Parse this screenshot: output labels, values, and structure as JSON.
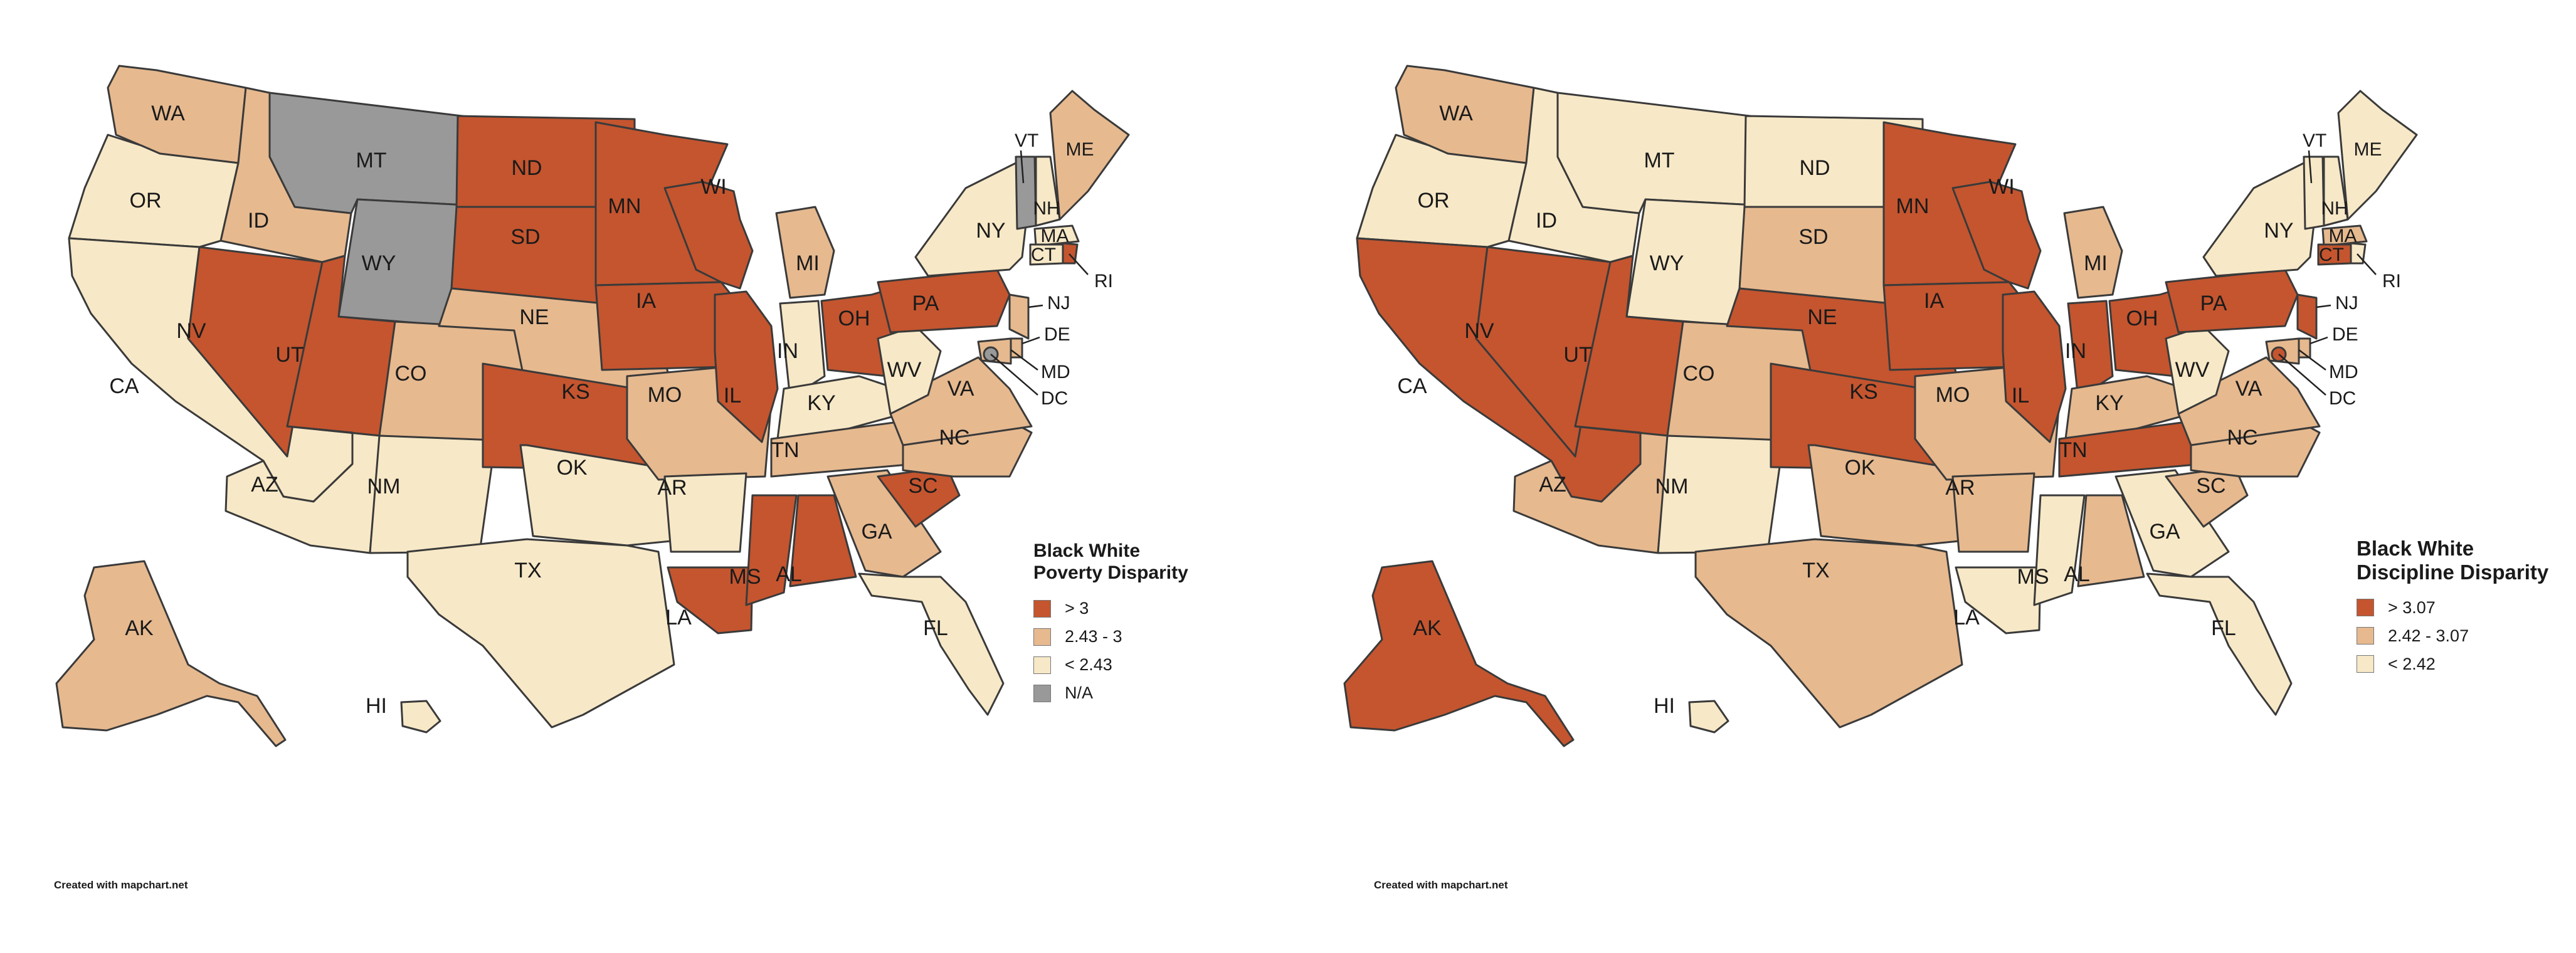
{
  "colors": {
    "high": "#c4552f",
    "mid": "#e6b98f",
    "low": "#f7e8c7",
    "na": "#999999"
  },
  "maps": [
    {
      "legend": {
        "title_line1": "Black White",
        "title_line2": "Poverty Disparity",
        "items": [
          {
            "label": "> 3",
            "class": "high"
          },
          {
            "label": "2.43 - 3",
            "class": "mid"
          },
          {
            "label": "< 2.43",
            "class": "low"
          },
          {
            "label": "N/A",
            "class": "na"
          }
        ]
      },
      "credit": "Created with mapchart.net",
      "states": {
        "WA": "mid",
        "OR": "low",
        "CA": "low",
        "NV": "high",
        "ID": "mid",
        "MT": "na",
        "WY": "na",
        "UT": "high",
        "AZ": "low",
        "CO": "mid",
        "NM": "low",
        "ND": "high",
        "SD": "high",
        "NE": "mid",
        "KS": "high",
        "OK": "low",
        "TX": "low",
        "MN": "high",
        "IA": "high",
        "MO": "mid",
        "AR": "low",
        "LA": "high",
        "WI": "high",
        "IL": "high",
        "MI": "mid",
        "IN": "low",
        "OH": "high",
        "KY": "low",
        "TN": "mid",
        "MS": "high",
        "AL": "high",
        "GA": "mid",
        "FL": "low",
        "SC": "high",
        "NC": "mid",
        "VA": "mid",
        "WV": "low",
        "PA": "high",
        "NY": "low",
        "VT": "na",
        "NH": "low",
        "ME": "mid",
        "MA": "low",
        "CT": "low",
        "RI": "high",
        "NJ": "mid",
        "DE": "mid",
        "MD": "mid",
        "DC": "na",
        "AK": "mid",
        "HI": "low"
      }
    },
    {
      "legend": {
        "title_line1": "Black White",
        "title_line2": "Discipline Disparity",
        "items": [
          {
            "label": "> 3.07",
            "class": "high"
          },
          {
            "label": "2.42 - 3.07",
            "class": "mid"
          },
          {
            "label": "< 2.42",
            "class": "low"
          }
        ]
      },
      "credit": "Created with mapchart.net",
      "states": {
        "WA": "mid",
        "OR": "low",
        "CA": "high",
        "NV": "high",
        "ID": "low",
        "MT": "low",
        "WY": "low",
        "UT": "high",
        "AZ": "mid",
        "CO": "mid",
        "NM": "low",
        "ND": "low",
        "SD": "mid",
        "NE": "high",
        "KS": "high",
        "OK": "mid",
        "TX": "mid",
        "MN": "high",
        "IA": "high",
        "MO": "mid",
        "AR": "mid",
        "LA": "low",
        "WI": "high",
        "IL": "high",
        "MI": "mid",
        "IN": "high",
        "OH": "high",
        "KY": "mid",
        "TN": "high",
        "MS": "low",
        "AL": "mid",
        "GA": "low",
        "FL": "low",
        "SC": "mid",
        "NC": "mid",
        "VA": "mid",
        "WV": "low",
        "PA": "high",
        "NY": "low",
        "VT": "low",
        "NH": "low",
        "ME": "low",
        "MA": "mid",
        "CT": "high",
        "RI": "low",
        "NJ": "high",
        "DE": "mid",
        "MD": "mid",
        "DC": "high",
        "AK": "high",
        "HI": "low"
      }
    }
  ]
}
